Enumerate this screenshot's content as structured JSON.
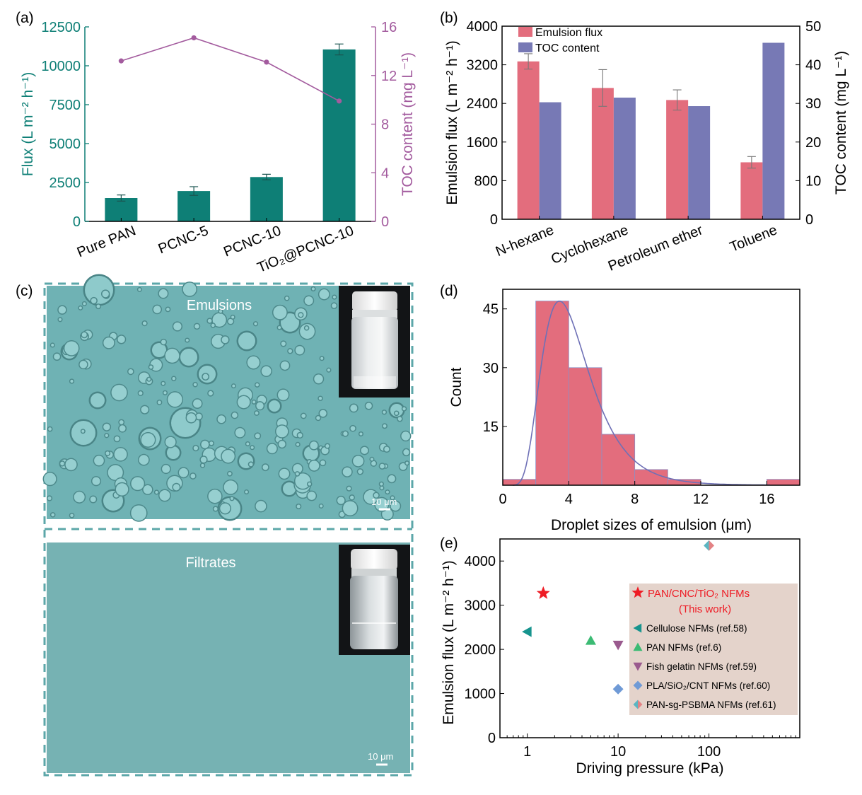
{
  "panel_labels": {
    "a": "(a)",
    "b": "(b)",
    "c": "(c)",
    "d": "(d)",
    "e": "(e)"
  },
  "colors": {
    "teal": "#0e7f76",
    "purple": "#a35b9e",
    "pink": "#e36d7d",
    "slate": "#7779b5",
    "red": "#ee1c25",
    "micro_bg": "#6fb2b4",
    "legend_box": "#e4d3cb"
  },
  "chart_data": [
    {
      "panel": "a",
      "type": "bar",
      "categories": [
        "Pure PAN",
        "PCNC-5",
        "PCNC-10",
        "TiO2@PCNC-10"
      ],
      "category_display": [
        "Pure PAN",
        "PCNC-5",
        "PCNC-10",
        "TiO₂@PCNC-10"
      ],
      "series": [
        {
          "name": "Flux",
          "kind": "bar",
          "axis": "left",
          "values": [
            1500,
            1950,
            2850,
            11050
          ],
          "errors": [
            200,
            280,
            180,
            350
          ]
        },
        {
          "name": "TOC content",
          "kind": "line",
          "axis": "right",
          "values": [
            13.2,
            15.1,
            13.1,
            9.9
          ]
        }
      ],
      "ylabel": "Flux (L m⁻² h⁻¹)",
      "y2label": "TOC content (mg L⁻¹)",
      "ylim": [
        0,
        12500
      ],
      "yticks": [
        0,
        2500,
        5000,
        7500,
        10000,
        12500
      ],
      "y2lim": [
        0,
        16
      ],
      "y2ticks": [
        0,
        4,
        8,
        12,
        16
      ]
    },
    {
      "panel": "b",
      "type": "bar",
      "categories": [
        "N-hexane",
        "Cyclohexane",
        "Petroleum ether",
        "Toluene"
      ],
      "series": [
        {
          "name": "Emulsion flux",
          "axis": "left",
          "values": [
            3270,
            2720,
            2470,
            1180
          ],
          "errors": [
            160,
            380,
            210,
            120
          ]
        },
        {
          "name": "TOC content",
          "axis": "right",
          "values": [
            30.3,
            31.5,
            29.3,
            45.7
          ]
        }
      ],
      "ylabel": "Emulsion flux (L m⁻² h⁻¹)",
      "y2label": "TOC content (mg L⁻¹)",
      "ylim": [
        0,
        4000
      ],
      "yticks": [
        0,
        800,
        1600,
        2400,
        3200,
        4000
      ],
      "y2lim": [
        0,
        50
      ],
      "y2ticks": [
        0,
        10,
        20,
        30,
        40,
        50
      ],
      "legend": [
        "Emulsion flux",
        "TOC content"
      ],
      "legend_position": "top-left"
    },
    {
      "panel": "d",
      "type": "bar",
      "bins": [
        [
          0,
          2
        ],
        [
          2,
          4
        ],
        [
          4,
          6
        ],
        [
          6,
          8
        ],
        [
          8,
          10
        ],
        [
          10,
          12
        ],
        [
          12,
          14
        ],
        [
          14,
          16
        ],
        [
          16,
          18
        ]
      ],
      "counts": [
        1.5,
        47,
        30,
        13,
        4,
        1.5,
        0,
        0,
        1.5
      ],
      "fit_peak": [
        3.5,
        47
      ],
      "xlabel": "Droplet sizes of emulsion (μm)",
      "ylabel": "Count",
      "xlim": [
        0,
        18
      ],
      "xticks": [
        0,
        4,
        8,
        12,
        16
      ],
      "ylim": [
        0,
        50
      ],
      "yticks": [
        15,
        30,
        45
      ]
    },
    {
      "panel": "e",
      "type": "scatter",
      "series": [
        {
          "name": "PAN/CNC/TiO2 NFMs",
          "label_line1": "PAN/CNC/TiO₂ NFMs",
          "label_line2": "(This work)",
          "marker": "star",
          "x": 1.5,
          "y": 3270
        },
        {
          "name": "Cellulose NFMs (ref.58)",
          "marker": "tri-left",
          "x": 1,
          "y": 2400
        },
        {
          "name": "PAN NFMs (ref.6)",
          "marker": "tri-up",
          "x": 5,
          "y": 2200
        },
        {
          "name": "Fish gelatin NFMs (ref.59)",
          "marker": "tri-down",
          "x": 10,
          "y": 2100
        },
        {
          "name": "PLA/SiO2/CNT NFMs (ref.60)",
          "label": "PLA/SiO₂/CNT NFMs (ref.60)",
          "marker": "diamond",
          "x": 10,
          "y": 1100
        },
        {
          "name": "PAN-sg-PSBMA NFMs (ref.61)",
          "marker": "diamond-split",
          "x": 100,
          "y": 4350
        }
      ],
      "xlabel": "Driving pressure (kPa)",
      "ylabel": "Emulsion flux (L m⁻² h⁻¹)",
      "xscale": "log",
      "xlim": [
        0.5,
        1000
      ],
      "xticks": [
        1,
        10,
        100
      ],
      "ylim": [
        0,
        4500
      ],
      "yticks": [
        0,
        1000,
        2000,
        3000,
        4000
      ],
      "legend_position": "right"
    }
  ],
  "micrographs": {
    "top_label": "Emulsions",
    "bottom_label": "Filtrates",
    "scale_bar": "10  μm"
  }
}
